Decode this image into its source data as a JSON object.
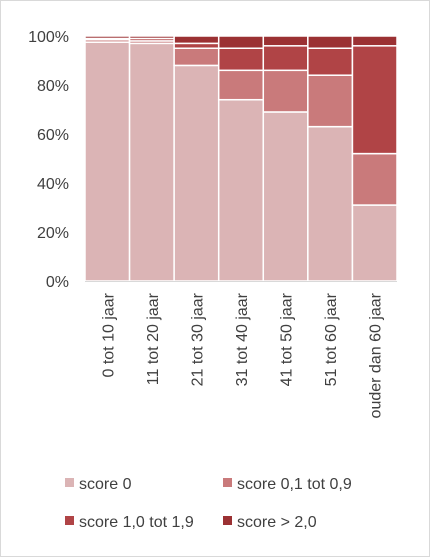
{
  "chart_data": {
    "type": "bar",
    "stacked": true,
    "percent": true,
    "categories": [
      "0 tot 10 jaar",
      "11 tot 20 jaar",
      "21 tot 30 jaar",
      "31 tot 40 jaar",
      "41 tot 50 jaar",
      "51 tot 60 jaar",
      "ouder dan 60 jaar"
    ],
    "series": [
      {
        "name": "score 0",
        "color": "#dbb4b5",
        "values": [
          97.5,
          97,
          88,
          74,
          69,
          63,
          31
        ]
      },
      {
        "name": "score 0,1 tot 0,9",
        "color": "#c97a7b",
        "values": [
          1,
          1,
          7,
          12,
          17,
          21,
          21
        ]
      },
      {
        "name": "score 1,0 tot 1,9",
        "color": "#b04446",
        "values": [
          0.5,
          1,
          2,
          9,
          10,
          11,
          44
        ]
      },
      {
        "name": "score > 2,0",
        "color": "#9b3133",
        "values": [
          1,
          1,
          3,
          5,
          4,
          5,
          4
        ]
      }
    ],
    "yticks": [
      "0%",
      "20%",
      "40%",
      "60%",
      "80%",
      "100%"
    ],
    "ylim": [
      0,
      100
    ],
    "grid": false,
    "legend_position": "bottom"
  }
}
